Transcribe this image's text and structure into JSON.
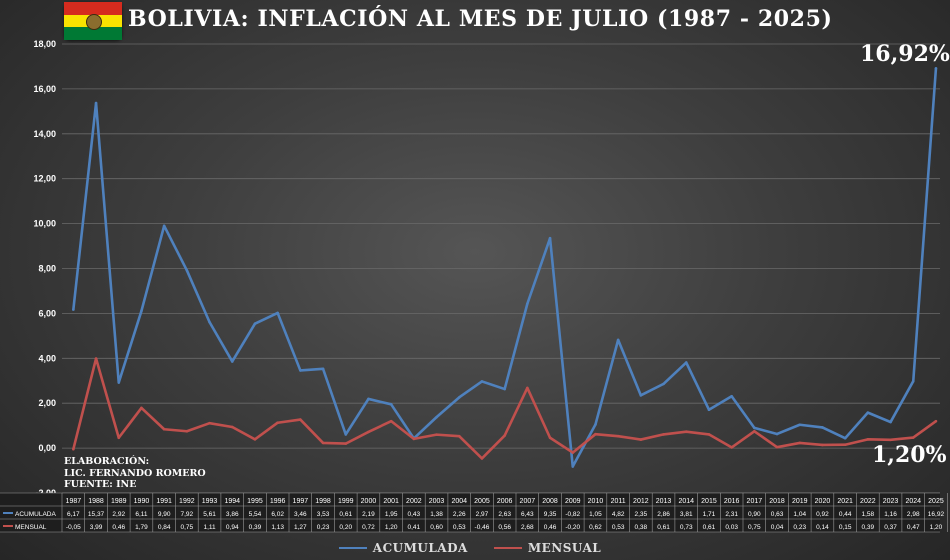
{
  "title": "BOLIVIA: INFLACIÓN AL MES DE JULIO (1987 - 2025)",
  "credits": {
    "line1": "ELABORACIÓN:",
    "line2": "LIC. FERNANDO ROMERO",
    "line3": "FUENTE: INE"
  },
  "annotations": {
    "acumulada_last": "16,92%",
    "mensual_last": "1,20%"
  },
  "chart_data": {
    "type": "line",
    "categories": [
      "1987",
      "1988",
      "1989",
      "1990",
      "1991",
      "1992",
      "1993",
      "1994",
      "1995",
      "1996",
      "1997",
      "1998",
      "1999",
      "2000",
      "2001",
      "2002",
      "2003",
      "2004",
      "2005",
      "2006",
      "2007",
      "2008",
      "2009",
      "2010",
      "2011",
      "2012",
      "2013",
      "2014",
      "2015",
      "2016",
      "2017",
      "2018",
      "2019",
      "2020",
      "2021",
      "2022",
      "2023",
      "2024",
      "2025"
    ],
    "series": [
      {
        "name": "ACUMULADA",
        "color": "#4f81bd",
        "values": [
          6.17,
          15.37,
          2.92,
          6.11,
          9.9,
          7.92,
          5.61,
          3.86,
          5.54,
          6.02,
          3.46,
          3.53,
          0.61,
          2.19,
          1.95,
          0.43,
          1.38,
          2.26,
          2.97,
          2.63,
          6.43,
          9.35,
          -0.82,
          1.05,
          4.82,
          2.35,
          2.86,
          3.81,
          1.71,
          2.31,
          0.9,
          0.63,
          1.04,
          0.92,
          0.44,
          1.58,
          1.16,
          2.98,
          16.92
        ]
      },
      {
        "name": "MENSUAL",
        "color": "#c0504d",
        "values": [
          -0.05,
          3.99,
          0.46,
          1.79,
          0.84,
          0.75,
          1.11,
          0.94,
          0.39,
          1.13,
          1.27,
          0.23,
          0.2,
          0.72,
          1.2,
          0.41,
          0.6,
          0.53,
          -0.46,
          0.56,
          2.68,
          0.46,
          -0.2,
          0.62,
          0.53,
          0.38,
          0.61,
          0.73,
          0.61,
          0.03,
          0.75,
          0.04,
          0.23,
          0.14,
          0.15,
          0.39,
          0.37,
          0.47,
          1.2
        ]
      }
    ],
    "table_rows": [
      {
        "label": "ACUMULADA",
        "cells": [
          "6,17",
          "15,37",
          "2,92",
          "6,11",
          "9,90",
          "7,92",
          "5,61",
          "3,86",
          "5,54",
          "6,02",
          "3,46",
          "3,53",
          "0,61",
          "2,19",
          "1,95",
          "0,43",
          "1,38",
          "2,26",
          "2,97",
          "2,63",
          "6,43",
          "9,35",
          "-0,82",
          "1,05",
          "4,82",
          "2,35",
          "2,86",
          "3,81",
          "1,71",
          "2,31",
          "0,90",
          "0,63",
          "1,04",
          "0,92",
          "0,44",
          "1,58",
          "1,16",
          "2,98",
          "16,92"
        ]
      },
      {
        "label": "MENSUAL",
        "cells": [
          "-0,05",
          "3,99",
          "0,46",
          "1,79",
          "0,84",
          "0,75",
          "1,11",
          "0,94",
          "0,39",
          "1,13",
          "1,27",
          "0,23",
          "0,20",
          "0,72",
          "1,20",
          "0,41",
          "0,60",
          "0,53",
          "-0,46",
          "0,56",
          "2,68",
          "0,46",
          "-0,20",
          "0,62",
          "0,53",
          "0,38",
          "0,61",
          "0,73",
          "0,61",
          "0,03",
          "0,75",
          "0,04",
          "0,23",
          "0,14",
          "0,15",
          "0,39",
          "0,37",
          "0,47",
          "1,20"
        ]
      }
    ],
    "ylim": [
      -2,
      18
    ],
    "yticks": [
      "-2,00",
      "0,00",
      "2,00",
      "4,00",
      "6,00",
      "8,00",
      "10,00",
      "12,00",
      "14,00",
      "16,00",
      "18,00"
    ],
    "grid": true,
    "legend_position": "bottom"
  }
}
